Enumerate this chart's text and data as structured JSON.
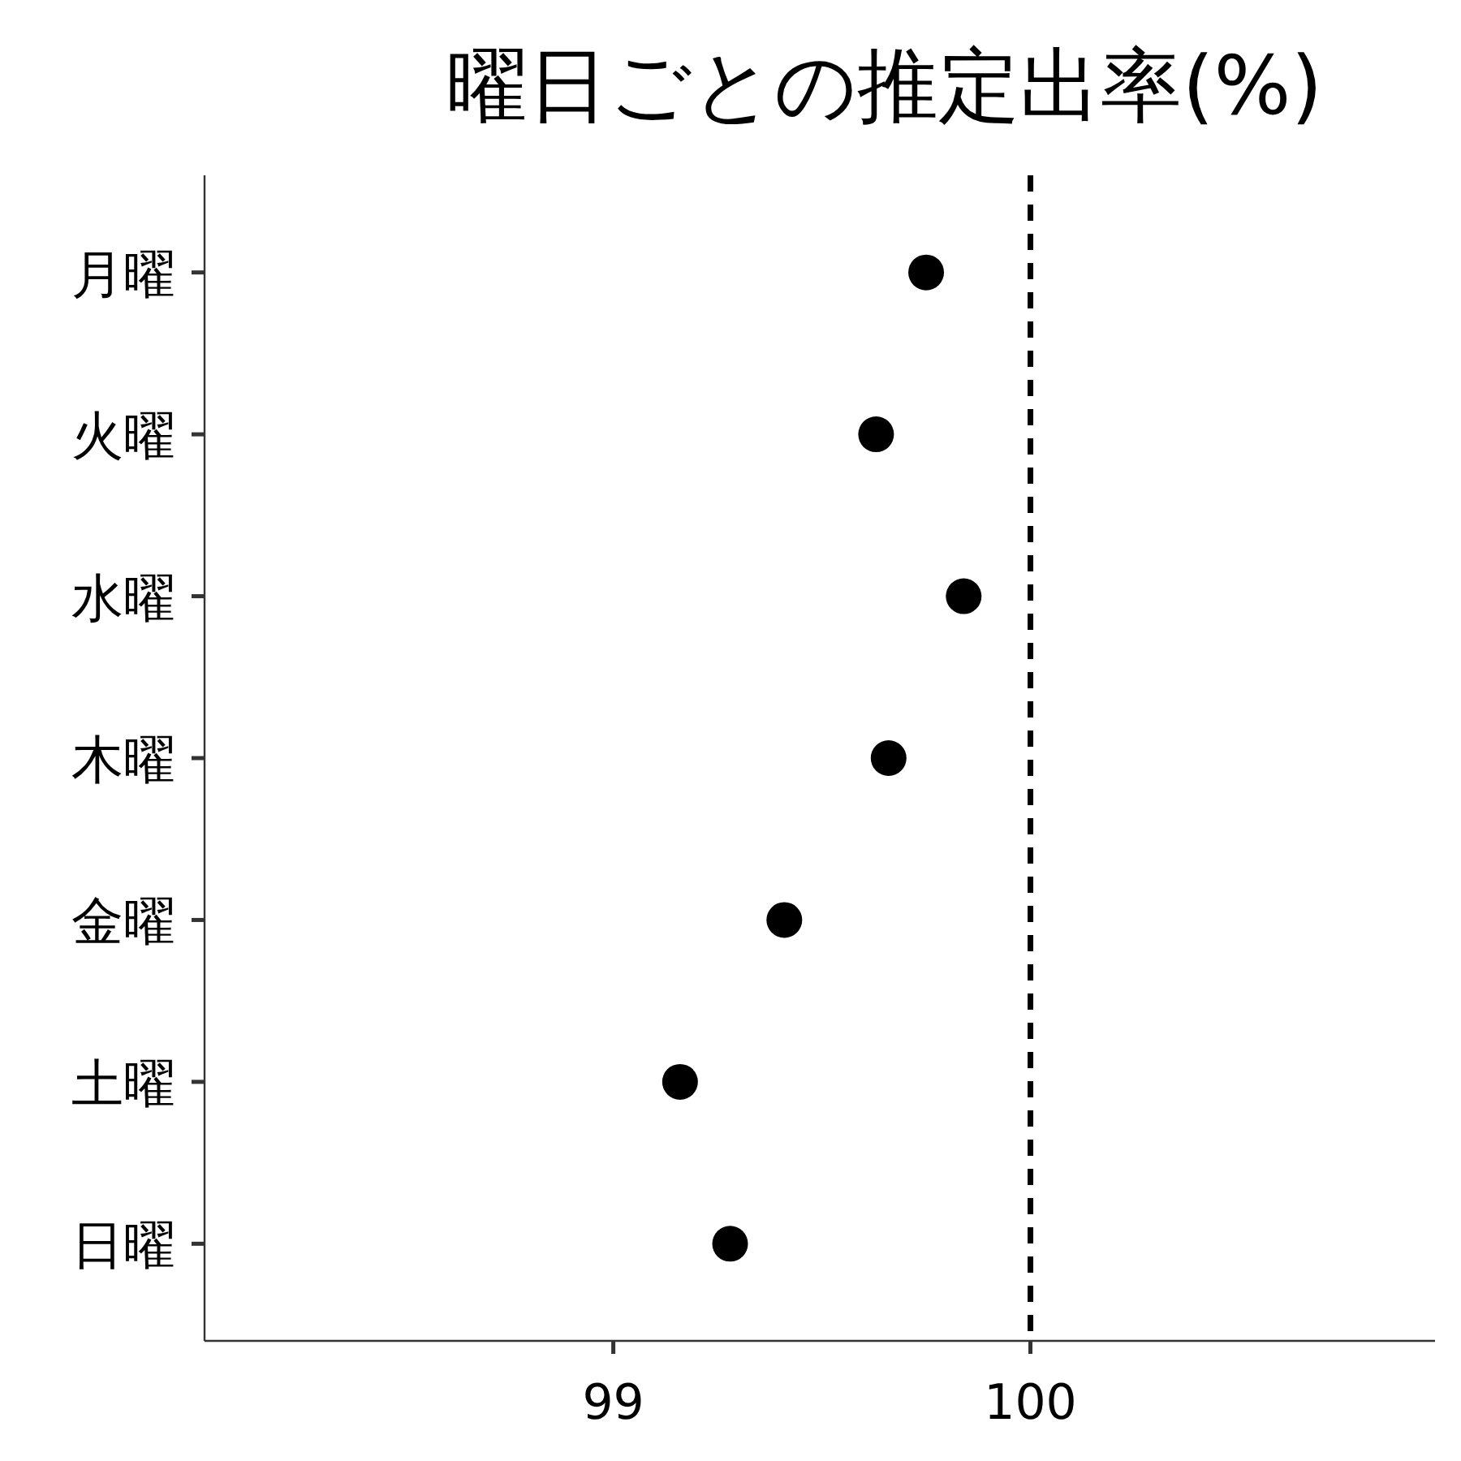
{
  "chart_data": {
    "type": "scatter",
    "title": "曜日ごとの推定出率(%)",
    "orientation": "horizontal",
    "categories": [
      "月曜",
      "火曜",
      "水曜",
      "木曜",
      "金曜",
      "土曜",
      "日曜"
    ],
    "values": [
      99.75,
      99.63,
      99.84,
      99.66,
      99.41,
      99.16,
      99.28
    ],
    "color": "#000000",
    "marker": "circle",
    "xlim": [
      98.02,
      100.97
    ],
    "xticks": [
      99,
      100
    ],
    "ref_lines": [
      {
        "axis": "x",
        "value": 100,
        "line_style": "dashed",
        "color": "#000000"
      }
    ],
    "grid": false
  }
}
